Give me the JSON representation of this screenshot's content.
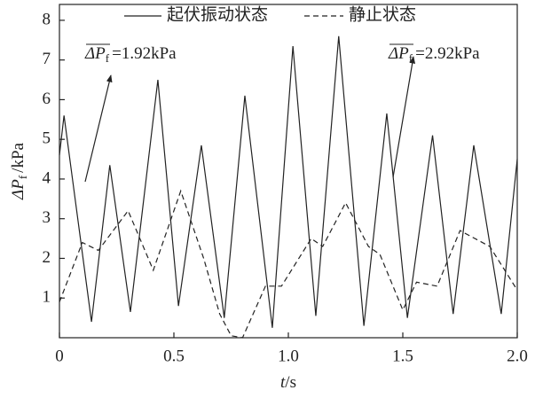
{
  "chart_data": {
    "type": "line",
    "x_label": {
      "symbol": "t",
      "unit": "/s"
    },
    "y_label": {
      "symbol": "ΔP",
      "subscript": "f",
      "unit": "/kPa"
    },
    "xlim": [
      0,
      2.0
    ],
    "ylim": [
      0,
      8.4
    ],
    "xticks": [
      0,
      0.5,
      {
        "value": 1,
        "label": "1.0"
      },
      1.5,
      {
        "value": 2,
        "label": "2.0"
      }
    ],
    "yticks": [
      1,
      2,
      3,
      4,
      5,
      6,
      7,
      8
    ],
    "series": [
      {
        "name": "起伏振动状态",
        "color": "#222222",
        "dash": "solid",
        "x": [
          0,
          0.02,
          0.14,
          0.22,
          0.31,
          0.43,
          0.52,
          0.62,
          0.72,
          0.81,
          0.93,
          1.02,
          1.12,
          1.22,
          1.33,
          1.43,
          1.52,
          1.63,
          1.72,
          1.81,
          1.93,
          2.0
        ],
        "values": [
          4.6,
          5.6,
          0.4,
          4.35,
          0.65,
          6.5,
          0.8,
          4.85,
          0.5,
          6.1,
          0.25,
          7.35,
          0.55,
          7.6,
          0.3,
          5.65,
          0.5,
          5.1,
          0.6,
          4.85,
          0.6,
          4.5
        ]
      },
      {
        "name": "静止状态",
        "color": "#222222",
        "dash": "dashed",
        "x": [
          0,
          0.1,
          0.17,
          0.3,
          0.41,
          0.53,
          0.63,
          0.7,
          0.75,
          0.8,
          0.9,
          0.97,
          1.1,
          1.15,
          1.25,
          1.35,
          1.4,
          1.5,
          1.56,
          1.65,
          1.75,
          1.88,
          2.0
        ],
        "values": [
          0.9,
          2.4,
          2.2,
          3.2,
          1.7,
          3.7,
          2.0,
          0.6,
          0.05,
          0.0,
          1.3,
          1.3,
          2.5,
          2.3,
          3.4,
          2.3,
          2.1,
          0.7,
          1.4,
          1.3,
          2.7,
          2.3,
          1.2
        ]
      }
    ],
    "annotations": [
      {
        "symbol": "ΔP",
        "subscript": "f",
        "text": "=1.92kPa"
      },
      {
        "symbol": "ΔP",
        "subscript": "f",
        "text": "=2.92kPa"
      }
    ]
  }
}
